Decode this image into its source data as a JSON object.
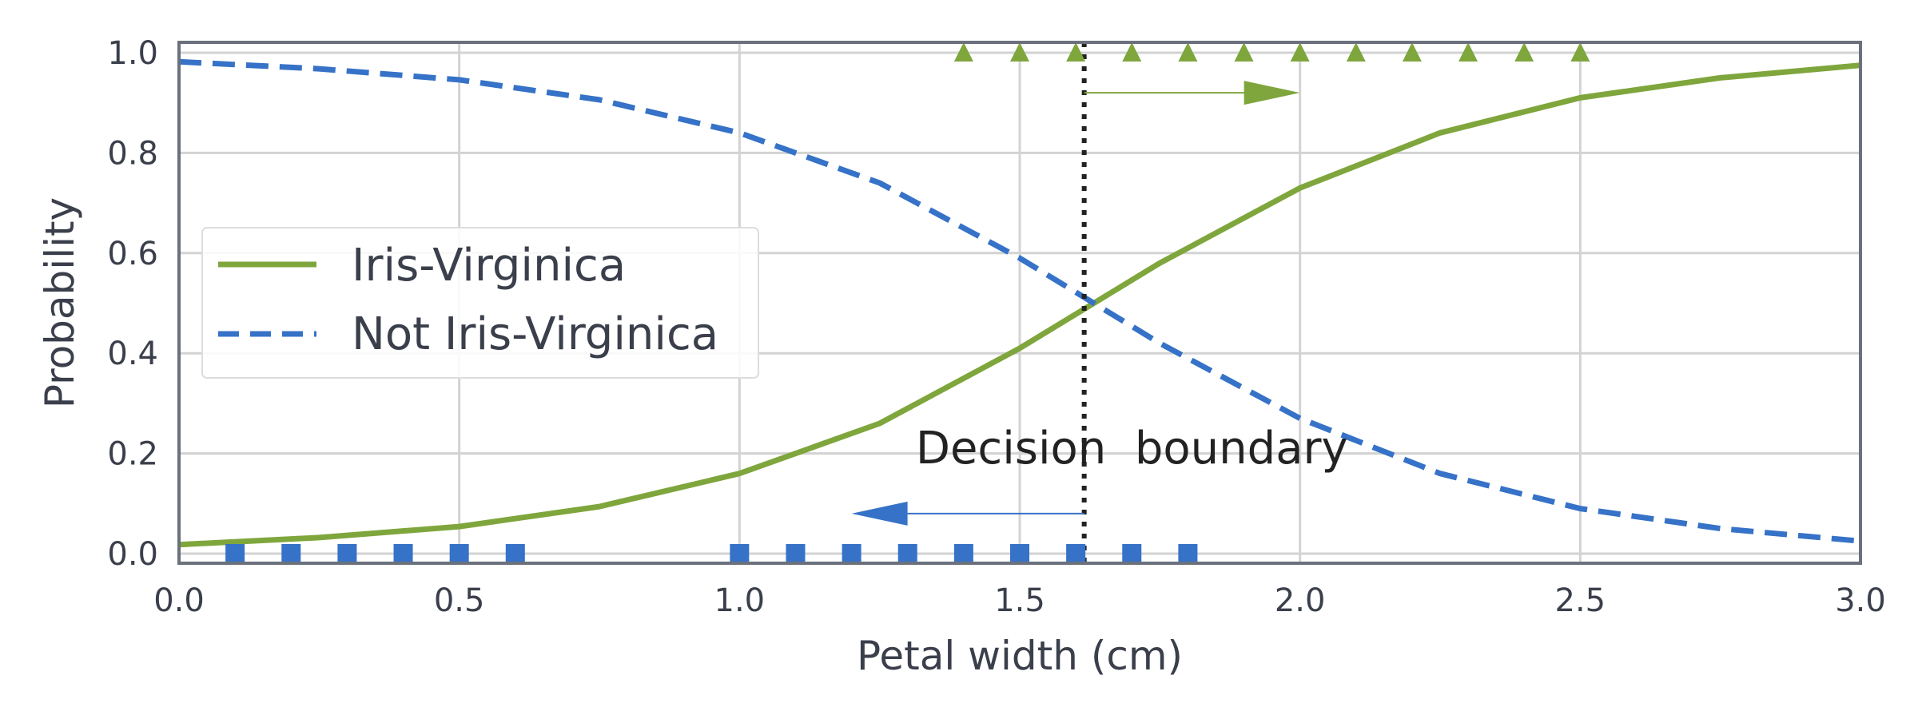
{
  "chart_data": {
    "type": "line",
    "title": "",
    "xlabel": "Petal width (cm)",
    "ylabel": "Probability",
    "xlim": [
      0.0,
      3.0
    ],
    "ylim": [
      0.0,
      1.0
    ],
    "grid": true,
    "legend_position": "center-left",
    "x_ticks": [
      "0.0",
      "0.5",
      "1.0",
      "1.5",
      "2.0",
      "2.5",
      "3.0"
    ],
    "y_ticks": [
      "0.0",
      "0.2",
      "0.4",
      "0.6",
      "0.8",
      "1.0"
    ],
    "colors": {
      "virginica": "#7fa63c",
      "not_virginica": "#3672c7",
      "boundary": "#222222"
    },
    "series": [
      {
        "name": "Iris-Virginica",
        "style": "solid",
        "x": [
          0.0,
          0.25,
          0.5,
          0.75,
          1.0,
          1.25,
          1.5,
          1.75,
          2.0,
          2.25,
          2.5,
          2.75,
          3.0
        ],
        "values": [
          0.018,
          0.032,
          0.054,
          0.094,
          0.16,
          0.26,
          0.41,
          0.58,
          0.73,
          0.84,
          0.91,
          0.95,
          0.975
        ]
      },
      {
        "name": "Not Iris-Virginica",
        "style": "dashed",
        "x": [
          0.0,
          0.25,
          0.5,
          0.75,
          1.0,
          1.25,
          1.5,
          1.75,
          2.0,
          2.25,
          2.5,
          2.75,
          3.0
        ],
        "values": [
          0.982,
          0.968,
          0.946,
          0.906,
          0.84,
          0.74,
          0.59,
          0.42,
          0.27,
          0.16,
          0.09,
          0.05,
          0.025
        ]
      }
    ],
    "virginica_samples": {
      "x": [
        1.4,
        1.5,
        1.6,
        1.7,
        1.8,
        1.9,
        2.0,
        2.1,
        2.2,
        2.3,
        2.4,
        2.5
      ],
      "y": 1.0
    },
    "not_virginica_samples": {
      "x": [
        0.1,
        0.2,
        0.3,
        0.4,
        0.5,
        0.6,
        1.0,
        1.1,
        1.2,
        1.3,
        1.4,
        1.5,
        1.6,
        1.7,
        1.8
      ],
      "y": 0.0
    },
    "decision_boundary": {
      "x": 1.615,
      "label": "Decision  boundary",
      "label_x": 1.7,
      "label_y": 0.18
    },
    "arrows": [
      {
        "x_start": 1.615,
        "x_end": 2.0,
        "y": 0.92,
        "color": "#7fa63c"
      },
      {
        "x_start": 1.615,
        "x_end": 1.2,
        "y": 0.08,
        "color": "#3672c7"
      }
    ]
  }
}
